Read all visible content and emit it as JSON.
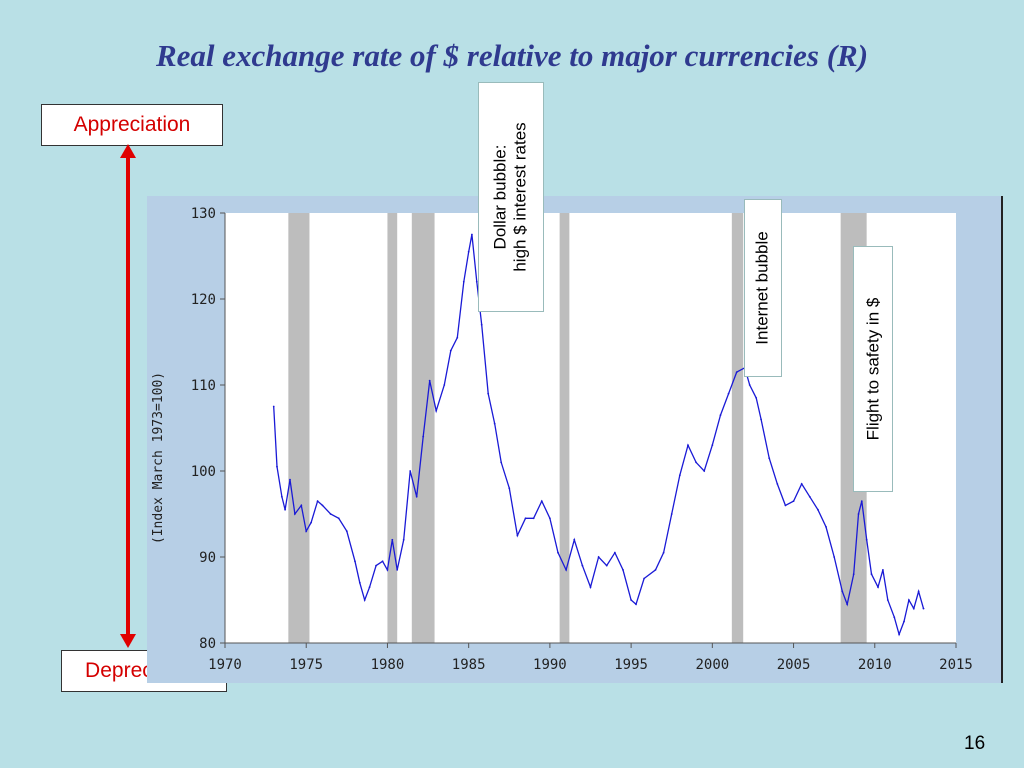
{
  "slide": {
    "title": "Real exchange rate of $ relative to major currencies (R)",
    "page_number": "16"
  },
  "scale_labels": {
    "top": "Appreciation",
    "bottom": "Depreciation"
  },
  "annotations": {
    "dollar_bubble_line1": "Dollar bubble:",
    "dollar_bubble_line2": "high $ interest rates",
    "internet_bubble": "Internet bubble",
    "flight_to_safety": "Flight to safety in $"
  },
  "colors": {
    "series": "#1a1ad6",
    "recession": "#bdbdbd",
    "arrow": "#e00000",
    "title": "#2f3a8f"
  },
  "chart_data": {
    "type": "line",
    "ylabel": "(Index March 1973=100)",
    "xlabel": "",
    "ylim": [
      80,
      130
    ],
    "xlim": [
      1970,
      2015
    ],
    "y_ticks": [
      "80",
      "90",
      "100",
      "110",
      "120",
      "130"
    ],
    "x_ticks": [
      "1970",
      "1975",
      "1980",
      "1985",
      "1990",
      "1995",
      "2000",
      "2005",
      "2010",
      "2015"
    ],
    "recessions": [
      [
        1973.9,
        1975.2
      ],
      [
        1980.0,
        1980.6
      ],
      [
        1981.5,
        1982.9
      ],
      [
        1990.6,
        1991.2
      ],
      [
        2001.2,
        2001.9
      ],
      [
        2007.9,
        2009.5
      ]
    ],
    "series": [
      {
        "values": [
          [
            1973.0,
            107.5
          ],
          [
            1973.2,
            100.5
          ],
          [
            1973.5,
            97.0
          ],
          [
            1973.7,
            95.5
          ],
          [
            1974.0,
            99.0
          ],
          [
            1974.3,
            95.0
          ],
          [
            1974.7,
            96.0
          ],
          [
            1975.0,
            93.0
          ],
          [
            1975.3,
            94.0
          ],
          [
            1975.7,
            96.5
          ],
          [
            1976.0,
            96.0
          ],
          [
            1976.5,
            95.0
          ],
          [
            1977.0,
            94.5
          ],
          [
            1977.5,
            93.0
          ],
          [
            1978.0,
            89.5
          ],
          [
            1978.3,
            87.0
          ],
          [
            1978.6,
            85.0
          ],
          [
            1978.9,
            86.5
          ],
          [
            1979.3,
            89.0
          ],
          [
            1979.7,
            89.5
          ],
          [
            1980.0,
            88.5
          ],
          [
            1980.3,
            92.0
          ],
          [
            1980.6,
            88.5
          ],
          [
            1981.0,
            92.0
          ],
          [
            1981.4,
            100.0
          ],
          [
            1981.8,
            97.0
          ],
          [
            1982.2,
            104.0
          ],
          [
            1982.6,
            110.5
          ],
          [
            1983.0,
            107.0
          ],
          [
            1983.5,
            110.0
          ],
          [
            1983.9,
            114.0
          ],
          [
            1984.3,
            115.5
          ],
          [
            1984.7,
            122.0
          ],
          [
            1985.0,
            125.5
          ],
          [
            1985.2,
            127.5
          ],
          [
            1985.5,
            122.0
          ],
          [
            1985.8,
            117.0
          ],
          [
            1986.2,
            109.0
          ],
          [
            1986.6,
            105.5
          ],
          [
            1987.0,
            101.0
          ],
          [
            1987.5,
            98.0
          ],
          [
            1988.0,
            92.5
          ],
          [
            1988.5,
            94.5
          ],
          [
            1989.0,
            94.5
          ],
          [
            1989.5,
            96.5
          ],
          [
            1990.0,
            94.5
          ],
          [
            1990.5,
            90.5
          ],
          [
            1991.0,
            88.5
          ],
          [
            1991.5,
            92.0
          ],
          [
            1992.0,
            89.0
          ],
          [
            1992.5,
            86.5
          ],
          [
            1993.0,
            90.0
          ],
          [
            1993.5,
            89.0
          ],
          [
            1994.0,
            90.5
          ],
          [
            1994.5,
            88.5
          ],
          [
            1995.0,
            85.0
          ],
          [
            1995.3,
            84.5
          ],
          [
            1995.8,
            87.5
          ],
          [
            1996.5,
            88.5
          ],
          [
            1997.0,
            90.5
          ],
          [
            1997.5,
            95.0
          ],
          [
            1998.0,
            99.5
          ],
          [
            1998.5,
            103.0
          ],
          [
            1999.0,
            101.0
          ],
          [
            1999.5,
            100.0
          ],
          [
            2000.0,
            103.0
          ],
          [
            2000.5,
            106.5
          ],
          [
            2001.0,
            109.0
          ],
          [
            2001.5,
            111.5
          ],
          [
            2002.0,
            112.0
          ],
          [
            2002.3,
            110.0
          ],
          [
            2002.7,
            108.5
          ],
          [
            2003.0,
            106.0
          ],
          [
            2003.5,
            101.5
          ],
          [
            2004.0,
            98.5
          ],
          [
            2004.5,
            96.0
          ],
          [
            2005.0,
            96.5
          ],
          [
            2005.5,
            98.5
          ],
          [
            2006.0,
            97.0
          ],
          [
            2006.5,
            95.5
          ],
          [
            2007.0,
            93.5
          ],
          [
            2007.5,
            90.0
          ],
          [
            2008.0,
            86.0
          ],
          [
            2008.3,
            84.5
          ],
          [
            2008.7,
            88.0
          ],
          [
            2009.0,
            95.0
          ],
          [
            2009.2,
            96.5
          ],
          [
            2009.5,
            92.0
          ],
          [
            2009.8,
            88.0
          ],
          [
            2010.2,
            86.5
          ],
          [
            2010.5,
            88.5
          ],
          [
            2010.8,
            85.0
          ],
          [
            2011.2,
            83.0
          ],
          [
            2011.5,
            81.0
          ],
          [
            2011.8,
            82.5
          ],
          [
            2012.1,
            85.0
          ],
          [
            2012.4,
            84.0
          ],
          [
            2012.7,
            86.0
          ],
          [
            2013.0,
            84.0
          ]
        ]
      }
    ]
  }
}
